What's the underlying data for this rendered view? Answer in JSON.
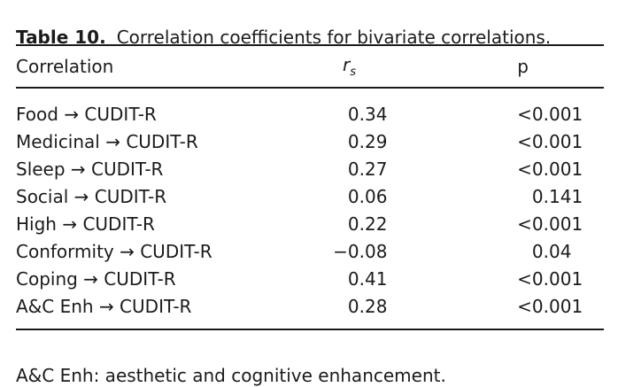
{
  "title": {
    "label": "Table 10.",
    "text": "Correlation coefficients for bivariate correlations."
  },
  "table": {
    "columns": [
      {
        "label": "Correlation"
      },
      {
        "label": "r",
        "sub": "s"
      },
      {
        "label": "p"
      }
    ],
    "rows": [
      {
        "correlation": "Food → CUDIT-R",
        "rs": "0.34",
        "p": "<0.001"
      },
      {
        "correlation": "Medicinal → CUDIT-R",
        "rs": "0.29",
        "p": "<0.001"
      },
      {
        "correlation": "Sleep → CUDIT-R",
        "rs": "0.27",
        "p": "<0.001"
      },
      {
        "correlation": "Social → CUDIT-R",
        "rs": "0.06",
        "p": "0.141"
      },
      {
        "correlation": "High → CUDIT-R",
        "rs": "0.22",
        "p": "<0.001"
      },
      {
        "correlation": "Conformity → CUDIT-R",
        "rs": "−0.08",
        "p": "0.04"
      },
      {
        "correlation": "Coping → CUDIT-R",
        "rs": "0.41",
        "p": "<0.001"
      },
      {
        "correlation": "A&C Enh → CUDIT-R",
        "rs": "0.28",
        "p": "<0.001"
      }
    ]
  },
  "footnote": "A&C Enh: aesthetic and cognitive enhancement."
}
